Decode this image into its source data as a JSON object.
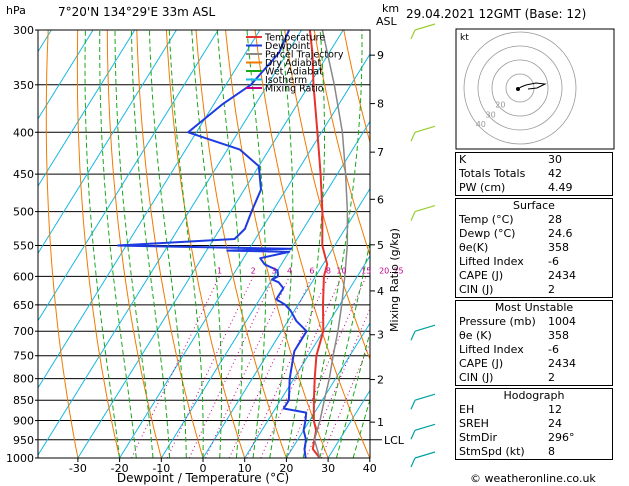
{
  "header": {
    "location": "7°20'N  134°29'E  33m  ASL",
    "datetime": "29.04.2021  12GMT  (Base: 12)",
    "hpa_unit": "hPa",
    "km_unit": "km",
    "asl_unit": "ASL"
  },
  "footer": {
    "credit": "© weatheronline.co.uk"
  },
  "legend": [
    {
      "label": "Temperature",
      "color": "#e8322c"
    },
    {
      "label": "Dewpoint",
      "color": "#1e3be0"
    },
    {
      "label": "Parcel Trajectory",
      "color": "#888888"
    },
    {
      "label": "Dry Adiabat",
      "color": "#f07a00"
    },
    {
      "label": "Wet Adiabat",
      "color": "#18a818"
    },
    {
      "label": "Isotherm",
      "color": "#18b8e0"
    },
    {
      "label": "Mixing Ratio",
      "color": "#c0008c"
    }
  ],
  "hodograph": {
    "unit_label": "kt",
    "ring_labels": [
      "20",
      "30",
      "40"
    ]
  },
  "indices": [
    {
      "label": "K",
      "value": "30"
    },
    {
      "label": "Totals Totals",
      "value": "42"
    },
    {
      "label": "PW (cm)",
      "value": "4.49"
    }
  ],
  "surface": {
    "title": "Surface",
    "rows": [
      {
        "label": "Temp (°C)",
        "value": "28"
      },
      {
        "label": "Dewp (°C)",
        "value": "24.6"
      },
      {
        "label": "θe(K)",
        "value": "358"
      },
      {
        "label": "Lifted Index",
        "value": "-6"
      },
      {
        "label": "CAPE (J)",
        "value": "2434"
      },
      {
        "label": "CIN (J)",
        "value": "2"
      }
    ]
  },
  "most_unstable": {
    "title": "Most Unstable",
    "rows": [
      {
        "label": "Pressure (mb)",
        "value": "1004"
      },
      {
        "label": "θe (K)",
        "value": "358"
      },
      {
        "label": "Lifted Index",
        "value": "-6"
      },
      {
        "label": "CAPE (J)",
        "value": "2434"
      },
      {
        "label": "CIN (J)",
        "value": "2"
      }
    ]
  },
  "hodograph_table": {
    "title": "Hodograph",
    "rows": [
      {
        "label": "EH",
        "value": "12"
      },
      {
        "label": "SREH",
        "value": "24"
      },
      {
        "label": "StmDir",
        "value": "296°"
      },
      {
        "label": "StmSpd (kt)",
        "value": "8"
      }
    ]
  },
  "chart_data": {
    "type": "line",
    "title": "",
    "xlabel": "Dewpoint / Temperature (°C)",
    "ylabel": "hPa",
    "right_axis_label": "Mixing Ratio (g/kg)",
    "x_ticks": [
      -30,
      -20,
      -10,
      0,
      10,
      20,
      30,
      40
    ],
    "pressure_levels": [
      300,
      350,
      400,
      450,
      500,
      550,
      600,
      650,
      700,
      750,
      800,
      850,
      900,
      950,
      1000
    ],
    "xlim": [
      -35,
      40
    ],
    "ylim": [
      1000,
      300
    ],
    "height_ticks_km": [
      {
        "km": "1",
        "p": 904
      },
      {
        "km": "2",
        "p": 802
      },
      {
        "km": "3",
        "p": 707
      },
      {
        "km": "4",
        "p": 625
      },
      {
        "km": "5",
        "p": 549
      },
      {
        "km": "6",
        "p": 483
      },
      {
        "km": "7",
        "p": 423
      },
      {
        "km": "8",
        "p": 369
      },
      {
        "km": "9",
        "p": 322
      }
    ],
    "lcl_label": "LCL",
    "lcl_pressure": 950,
    "mixing_ratio_labels": [
      "1",
      "2",
      "3",
      "4",
      "6",
      "8",
      "10",
      "15",
      "20",
      "25"
    ],
    "mixing_ratio_values": [
      1,
      2,
      3,
      4,
      6,
      8,
      10,
      15,
      20,
      25
    ],
    "series": [
      {
        "name": "Temperature",
        "color": "#e8322c",
        "points": [
          [
            1000,
            28
          ],
          [
            975,
            25
          ],
          [
            950,
            24
          ],
          [
            925,
            23
          ],
          [
            900,
            21
          ],
          [
            850,
            18
          ],
          [
            800,
            15
          ],
          [
            750,
            12
          ],
          [
            700,
            10
          ],
          [
            650,
            6
          ],
          [
            600,
            2
          ],
          [
            580,
            1
          ],
          [
            550,
            -3
          ],
          [
            500,
            -8
          ],
          [
            450,
            -14
          ],
          [
            400,
            -21
          ],
          [
            350,
            -29
          ],
          [
            320,
            -34
          ],
          [
            300,
            -38
          ]
        ]
      },
      {
        "name": "Dewpoint",
        "color": "#1e3be0",
        "points": [
          [
            1000,
            24.6
          ],
          [
            975,
            23
          ],
          [
            950,
            22
          ],
          [
            925,
            20
          ],
          [
            900,
            19
          ],
          [
            880,
            18
          ],
          [
            870,
            12
          ],
          [
            850,
            12
          ],
          [
            800,
            9
          ],
          [
            760,
            7
          ],
          [
            740,
            6
          ],
          [
            700,
            6
          ],
          [
            680,
            2
          ],
          [
            660,
            -1
          ],
          [
            650,
            -3
          ],
          [
            640,
            -6
          ],
          [
            620,
            -6
          ],
          [
            610,
            -8
          ],
          [
            605,
            -10
          ],
          [
            600,
            -9
          ],
          [
            590,
            -10
          ],
          [
            580,
            -14
          ],
          [
            570,
            -16
          ],
          [
            560,
            -10
          ],
          [
            558,
            -25
          ],
          [
            555,
            -10
          ],
          [
            552,
            -37
          ],
          [
            550,
            -52
          ],
          [
            540,
            -25
          ],
          [
            525,
            -24
          ],
          [
            500,
            -25
          ],
          [
            470,
            -26
          ],
          [
            440,
            -30
          ],
          [
            420,
            -37
          ],
          [
            400,
            -52
          ],
          [
            370,
            -48
          ],
          [
            350,
            -44
          ],
          [
            320,
            -42
          ],
          [
            300,
            -43
          ]
        ]
      },
      {
        "name": "Parcel Trajectory",
        "color": "#888888",
        "points": [
          [
            1000,
            28
          ],
          [
            950,
            24
          ],
          [
            900,
            22.5
          ],
          [
            850,
            20.5
          ],
          [
            800,
            18.5
          ],
          [
            750,
            16
          ],
          [
            700,
            13.5
          ],
          [
            650,
            10.5
          ],
          [
            600,
            7
          ],
          [
            550,
            3
          ],
          [
            500,
            -2
          ],
          [
            450,
            -8
          ],
          [
            400,
            -15
          ],
          [
            350,
            -24
          ],
          [
            300,
            -35
          ]
        ]
      }
    ],
    "wind_barbs_pressure": [
      1000,
      925,
      850,
      700,
      500,
      400,
      300
    ],
    "grid": true
  }
}
